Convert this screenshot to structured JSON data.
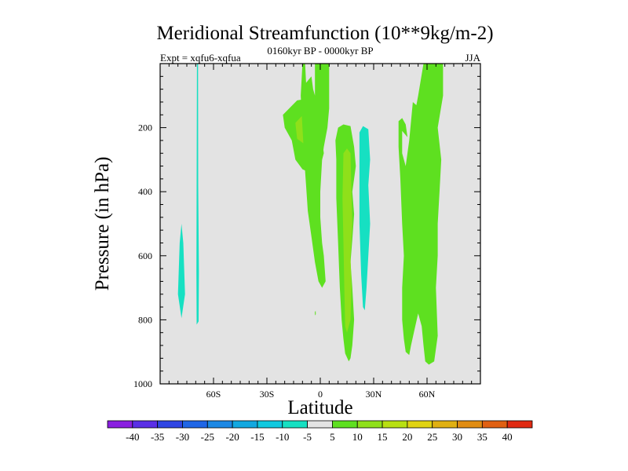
{
  "chart_data": {
    "type": "contour",
    "title": "Meridional Streamfunction (10**9kg/m-2)",
    "left_string": "Expt = xqfu6-xqfua",
    "center_string": "0160kyr BP - 0000kyr BP",
    "right_string": "JJA",
    "xlabel": "Latitude",
    "ylabel": "Pressure (in hPa)",
    "xlim": [
      -90,
      90
    ],
    "ylim": [
      0,
      1000
    ],
    "x_ticks": [
      {
        "value": -60,
        "label": "60S"
      },
      {
        "value": -30,
        "label": "30S"
      },
      {
        "value": 0,
        "label": "0"
      },
      {
        "value": 30,
        "label": "30N"
      },
      {
        "value": 60,
        "label": "60N"
      }
    ],
    "y_ticks": [
      {
        "value": 200,
        "label": "200"
      },
      {
        "value": 400,
        "label": "400"
      },
      {
        "value": 600,
        "label": "600"
      },
      {
        "value": 800,
        "label": "800"
      },
      {
        "value": 1000,
        "label": "1000"
      }
    ],
    "background_color": "#e3e3e3",
    "colorbar": {
      "labels": [
        "-40",
        "-35",
        "-30",
        "-25",
        "-20",
        "-15",
        "-10",
        "-5",
        "5",
        "10",
        "15",
        "20",
        "25",
        "30",
        "35",
        "40"
      ],
      "colors": [
        "#8a1fe0",
        "#5a2fe6",
        "#2f45e3",
        "#1f66e6",
        "#1c88e4",
        "#12a8e0",
        "#10c9df",
        "#16e0c2",
        "#e3e3e3",
        "#5ee020",
        "#8fe01a",
        "#b8e012",
        "#e0d312",
        "#e0b012",
        "#e08c12",
        "#e06012",
        "#e02a12"
      ]
    },
    "regions": [
      {
        "name": "contour-cyan-far-south-a",
        "class": -5,
        "color": "#16e0c2",
        "points": [
          [
            -79,
            560
          ],
          [
            -78,
            500
          ],
          [
            -77,
            560
          ],
          [
            -76,
            720
          ],
          [
            -78,
            795
          ],
          [
            -80,
            720
          ]
        ]
      },
      {
        "name": "contour-cyan-far-south-b",
        "class": -5,
        "color": "#16e0c2",
        "points": [
          [
            -69.3,
            0
          ],
          [
            -68.7,
            0
          ],
          [
            -68.6,
            380
          ],
          [
            -68.2,
            650
          ],
          [
            -68.4,
            805
          ],
          [
            -69.5,
            815
          ],
          [
            -69.6,
            650
          ]
        ]
      },
      {
        "name": "contour-green-upper-south",
        "class": 5,
        "color": "#5ee020",
        "points": [
          [
            -21,
            160
          ],
          [
            -13,
            115
          ],
          [
            -8,
            110
          ],
          [
            -5,
            135
          ],
          [
            -2,
            175
          ],
          [
            0,
            190
          ],
          [
            2,
            280
          ],
          [
            1,
            300
          ],
          [
            -4,
            320
          ],
          [
            -6,
            340
          ],
          [
            -10,
            330
          ],
          [
            -14,
            300
          ],
          [
            -16,
            240
          ],
          [
            -20,
            200
          ]
        ]
      },
      {
        "name": "contour-lime-upper-south",
        "class": 10,
        "color": "#8fe01a",
        "points": [
          [
            -14,
            185
          ],
          [
            -8,
            150
          ],
          [
            -3,
            160
          ],
          [
            -1,
            200
          ],
          [
            -3,
            240
          ],
          [
            -8,
            255
          ],
          [
            -13,
            235
          ]
        ]
      },
      {
        "name": "contour-green-equator-column",
        "class": 5,
        "color": "#5ee020",
        "points": [
          [
            -10,
            0
          ],
          [
            -8.5,
            0
          ],
          [
            -8,
            60
          ],
          [
            -5,
            40
          ],
          [
            -4,
            80
          ],
          [
            -3,
            100
          ],
          [
            -3,
            0
          ],
          [
            5,
            0
          ],
          [
            5,
            140
          ],
          [
            4,
            200
          ],
          [
            2,
            260
          ],
          [
            1,
            300
          ],
          [
            0,
            400
          ],
          [
            0,
            480
          ],
          [
            1,
            560
          ],
          [
            2,
            600
          ],
          [
            3,
            680
          ],
          [
            1,
            700
          ],
          [
            -1,
            680
          ],
          [
            -3,
            620
          ],
          [
            -5,
            540
          ],
          [
            -7,
            460
          ],
          [
            -8,
            380
          ],
          [
            -9,
            300
          ],
          [
            -10,
            200
          ],
          [
            -11,
            100
          ]
        ]
      },
      {
        "name": "contour-green-nh-subtropic",
        "class": 5,
        "color": "#5ee020",
        "points": [
          [
            10,
            200
          ],
          [
            13,
            190
          ],
          [
            17,
            195
          ],
          [
            19,
            260
          ],
          [
            20,
            320
          ],
          [
            18,
            400
          ],
          [
            19,
            470
          ],
          [
            18,
            550
          ],
          [
            17,
            620
          ],
          [
            18,
            700
          ],
          [
            19,
            800
          ],
          [
            18,
            880
          ],
          [
            17,
            920
          ],
          [
            16,
            930
          ],
          [
            14,
            905
          ],
          [
            13,
            860
          ],
          [
            12,
            800
          ],
          [
            11,
            700
          ],
          [
            10,
            560
          ],
          [
            9,
            420
          ],
          [
            9,
            300
          ],
          [
            8.5,
            240
          ]
        ]
      },
      {
        "name": "contour-lime-nh-subtropic",
        "class": 10,
        "color": "#8fe01a",
        "points": [
          [
            13,
            280
          ],
          [
            15,
            265
          ],
          [
            17,
            280
          ],
          [
            17.5,
            400
          ],
          [
            18,
            500
          ],
          [
            17,
            600
          ],
          [
            17.5,
            700
          ],
          [
            17,
            800
          ],
          [
            15,
            840
          ],
          [
            14,
            820
          ],
          [
            13.5,
            700
          ],
          [
            13,
            560
          ],
          [
            12.5,
            420
          ]
        ]
      },
      {
        "name": "contour-cyan-nh-midlat",
        "class": -5,
        "color": "#16e0c2",
        "points": [
          [
            22,
            215
          ],
          [
            24,
            195
          ],
          [
            27,
            205
          ],
          [
            28,
            300
          ],
          [
            27,
            380
          ],
          [
            28,
            500
          ],
          [
            27,
            600
          ],
          [
            26,
            700
          ],
          [
            25,
            770
          ],
          [
            24,
            760
          ],
          [
            23,
            660
          ],
          [
            22,
            500
          ],
          [
            22,
            350
          ]
        ]
      },
      {
        "name": "contour-green-nh-high",
        "class": 5,
        "color": "#5ee020",
        "points": [
          [
            44,
            180
          ],
          [
            46,
            170
          ],
          [
            48,
            190
          ],
          [
            49,
            230
          ],
          [
            46,
            210
          ],
          [
            46,
            280
          ],
          [
            48,
            320
          ],
          [
            50,
            240
          ],
          [
            52,
            120
          ],
          [
            54,
            130
          ],
          [
            55,
            100
          ],
          [
            58,
            0
          ],
          [
            69,
            0
          ],
          [
            69,
            100
          ],
          [
            66,
            200
          ],
          [
            68,
            300
          ],
          [
            67,
            400
          ],
          [
            66,
            500
          ],
          [
            66,
            600
          ],
          [
            65,
            700
          ],
          [
            66,
            850
          ],
          [
            64,
            930
          ],
          [
            61,
            940
          ],
          [
            59,
            930
          ],
          [
            58,
            880
          ],
          [
            57,
            820
          ],
          [
            55,
            780
          ],
          [
            53,
            830
          ],
          [
            51,
            880
          ],
          [
            50,
            910
          ],
          [
            48,
            900
          ],
          [
            47,
            860
          ],
          [
            46,
            800
          ],
          [
            46,
            700
          ],
          [
            47,
            600
          ],
          [
            46,
            500
          ],
          [
            45,
            360
          ],
          [
            44,
            260
          ]
        ]
      },
      {
        "name": "contour-green-equator-speck",
        "class": 5,
        "color": "#5ee020",
        "points": [
          [
            -3,
            775
          ],
          [
            -2.6,
            772
          ],
          [
            -2.5,
            782
          ],
          [
            -3,
            786
          ]
        ]
      }
    ]
  }
}
